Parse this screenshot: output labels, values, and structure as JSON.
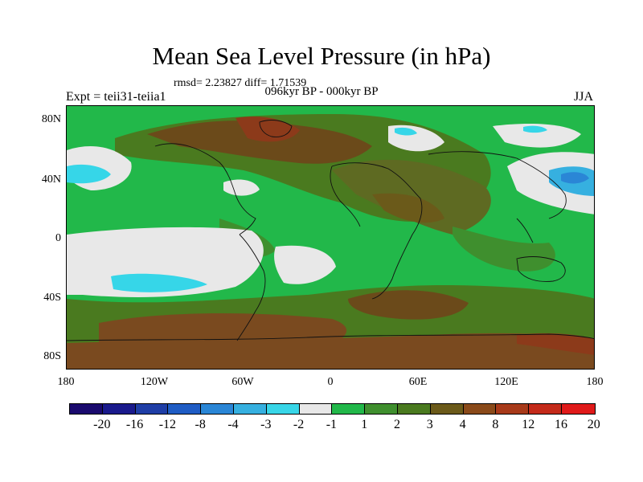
{
  "title": "Mean Sea Level Pressure (in hPa)",
  "stats": "rmsd= 2.23827 diff= 1.71539",
  "subtitle": "096kyr BP - 000kyr BP",
  "left_label": "Expt = teii31-teiia1",
  "right_label": "JJA",
  "lat_ticks": [
    "80N",
    "40N",
    "0",
    "40S",
    "80S"
  ],
  "lon_ticks": [
    "180",
    "120W",
    "60W",
    "0",
    "60E",
    "120E",
    "180"
  ],
  "colorbar": {
    "colors": [
      "#1a0a6e",
      "#1a1a8c",
      "#1f3ea6",
      "#1f5cc4",
      "#2a86d6",
      "#36b0e0",
      "#38d6e8",
      "#e8e8e8",
      "#22b84a",
      "#3f8f2e",
      "#4a7a1f",
      "#6b5a1a",
      "#8a4a1a",
      "#a83a1a",
      "#c42a1a",
      "#e01a1a"
    ],
    "labels": [
      "-20",
      "-16",
      "-12",
      "-8",
      "-4",
      "-3",
      "-2",
      "-1",
      "1",
      "2",
      "3",
      "4",
      "8",
      "12",
      "16",
      "20"
    ]
  },
  "legend_colors": {
    "green_light": "#22b84a",
    "green_mid": "#3f8f2e",
    "olive": "#5e6a22",
    "brown": "#7a4a1f",
    "red_brown": "#8c3a1a",
    "white": "#e8e8e8",
    "cyan": "#36d6e8",
    "blue": "#2a86d6"
  }
}
